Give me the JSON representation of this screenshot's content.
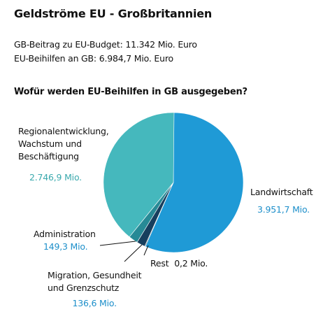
{
  "title": "Geldströme EU - Großbritannien",
  "stats": {
    "contribution": "GB-Beitrag zu EU-Budget: 11.342 Mio. Euro",
    "subsidies": "EU-Beihilfen an GB: 6.984,7 Mio. Euro"
  },
  "subtitle": "Wofür werden EU-Beihilfen in GB ausgegeben?",
  "labels": {
    "landwirtschaft": {
      "name": "Landwirtschaft",
      "value": "3.951,7 Mio."
    },
    "regional": {
      "name_lines": [
        "Regionalentwicklung,",
        "Wachstum und",
        "Beschäftigung"
      ],
      "value": "2.746,9 Mio."
    },
    "administration": {
      "name": "Administration",
      "value": "149,3 Mio."
    },
    "migration": {
      "name_lines": [
        "Migration, Gesundheit",
        "und Grenzschutz"
      ],
      "value": "136,6 Mio."
    },
    "rest": {
      "name": "Rest",
      "value": "0,2 Mio."
    }
  },
  "colors": {
    "landwirtschaft": "#1f9ad6",
    "regional": "#45b8bd",
    "administration": "#278a96",
    "migration": "#173f5e",
    "rest": "#0b1f33",
    "value_blue": "#1d8fca",
    "value_teal": "#3aa9ad"
  },
  "chart_data": {
    "type": "pie",
    "title": "Wofür werden EU-Beihilfen in GB ausgegeben?",
    "unit": "Mio.",
    "slices": [
      {
        "name": "Landwirtschaft",
        "value": 3951.7
      },
      {
        "name": "Rest",
        "value": 0.2
      },
      {
        "name": "Migration, Gesundheit und Grenzschutz",
        "value": 136.6
      },
      {
        "name": "Administration",
        "value": 149.3
      },
      {
        "name": "Regionalentwicklung, Wachstum und Beschäftigung",
        "value": 2746.9
      }
    ]
  }
}
